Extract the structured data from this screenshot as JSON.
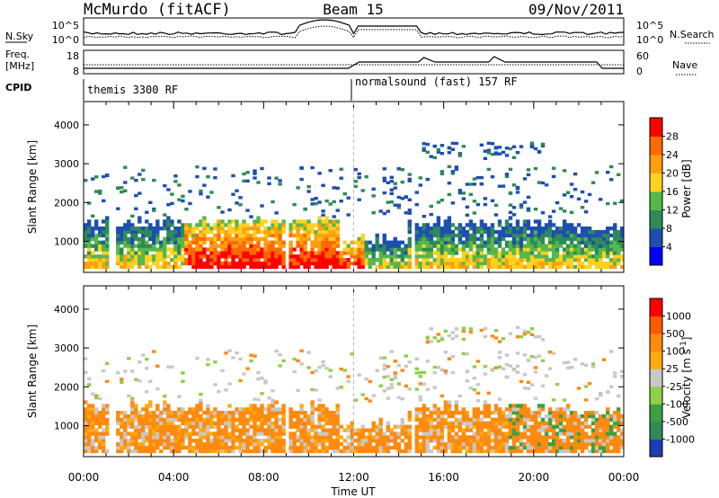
{
  "header": {
    "station": "McMurdo (fitACF)",
    "beam": "Beam 15",
    "date": "09/Nov/2011"
  },
  "mini_panels": {
    "left_labels": [
      "N.Sky",
      "Freq.",
      "[MHz]",
      "CPID"
    ],
    "right_labels": [
      "N.Search",
      "Nave"
    ],
    "nsky_ticks": [
      "10^5",
      "10^0"
    ],
    "freq_ticks": [
      "18",
      "8"
    ],
    "nave_ticks": [
      "60",
      "0"
    ],
    "cpid_left": "themis 3300 RF",
    "cpid_right": "normalsound (fast) 157 RF"
  },
  "chart_data": [
    {
      "type": "heatmap",
      "ylabel": "Slant Range [km]",
      "xlabel": "Time UT",
      "x_ticks": [
        "00:00",
        "04:00",
        "08:00",
        "12:00",
        "16:00",
        "20:00",
        "00:00"
      ],
      "y_ticks": [
        "1000",
        "2000",
        "3000",
        "4000"
      ],
      "ylim": [
        200,
        4600
      ],
      "colorbar": {
        "label": "Power [dB]",
        "ticks": [
          "4",
          "8",
          "12",
          "16",
          "20",
          "24",
          "28"
        ],
        "colors": [
          "#0000ff",
          "#1e4fb0",
          "#2e8b57",
          "#55b84a",
          "#ffd21f",
          "#ff9f10",
          "#ff6a00",
          "#ff0000"
        ]
      }
    },
    {
      "type": "heatmap",
      "ylabel": "Slant Range [km]",
      "xlabel": "Time UT",
      "x_ticks": [
        "00:00",
        "04:00",
        "08:00",
        "12:00",
        "16:00",
        "20:00",
        "00:00"
      ],
      "y_ticks": [
        "1000",
        "2000",
        "3000",
        "4000"
      ],
      "ylim": [
        200,
        4600
      ],
      "colorbar": {
        "label": "Velocity [m s",
        "label_sup": "-1",
        "label_end": "]",
        "ticks": [
          "1000",
          "500",
          "100",
          "25",
          "-25",
          "-100",
          "-500",
          "-1000"
        ],
        "colors": [
          "#1e3cb4",
          "#2e8b57",
          "#3aa040",
          "#8fd04a",
          "#c8c8c8",
          "#ffaa10",
          "#ff8a10",
          "#ff5a00",
          "#ff0000"
        ]
      }
    }
  ]
}
